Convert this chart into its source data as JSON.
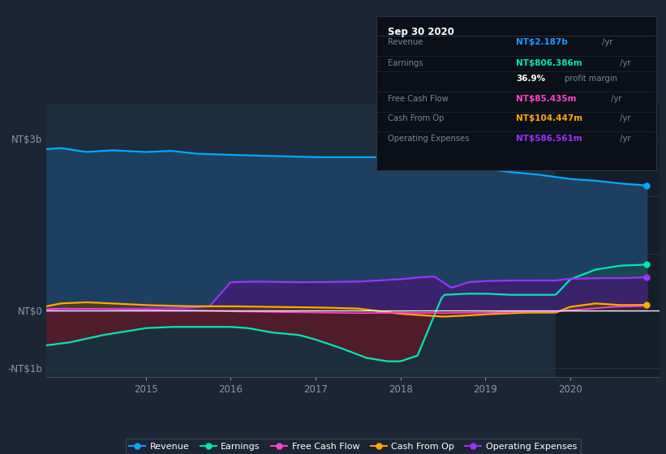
{
  "bg_color": "#1c2533",
  "plot_bg_color": "#1e2d3d",
  "grid_color": "#263545",
  "zero_line_color": "#ffffff",
  "ylim": [
    -1150000000.0,
    3600000000.0
  ],
  "xlim": [
    2013.83,
    2021.05
  ],
  "ytick_positions": [
    -1000000000.0,
    0,
    3000000000.0
  ],
  "ytick_labels": [
    "-NT$1b",
    "NT$0",
    "NT$3b"
  ],
  "xtick_positions": [
    2015,
    2016,
    2017,
    2018,
    2019,
    2020
  ],
  "xtick_labels": [
    "2015",
    "2016",
    "2017",
    "2018",
    "2019",
    "2020"
  ],
  "highlight_x_start": 2019.83,
  "highlight_x_end": 2021.05,
  "revenue_color": "#00aaff",
  "revenue_fill": "#1e4060",
  "earnings_color": "#00e8b0",
  "earnings_fill_neg": "#5a1a28",
  "earnings_fill_pos": "#1a4a50",
  "op_exp_color": "#9933ff",
  "op_exp_fill": "#3d2070",
  "cash_op_color": "#ffaa00",
  "cash_op_fill": "#5a3a10",
  "fcf_color": "#ff44cc",
  "fcf_fill": "#3a1040",
  "legend_bg": "#1c2533",
  "legend_border": "#3a4a5a"
}
